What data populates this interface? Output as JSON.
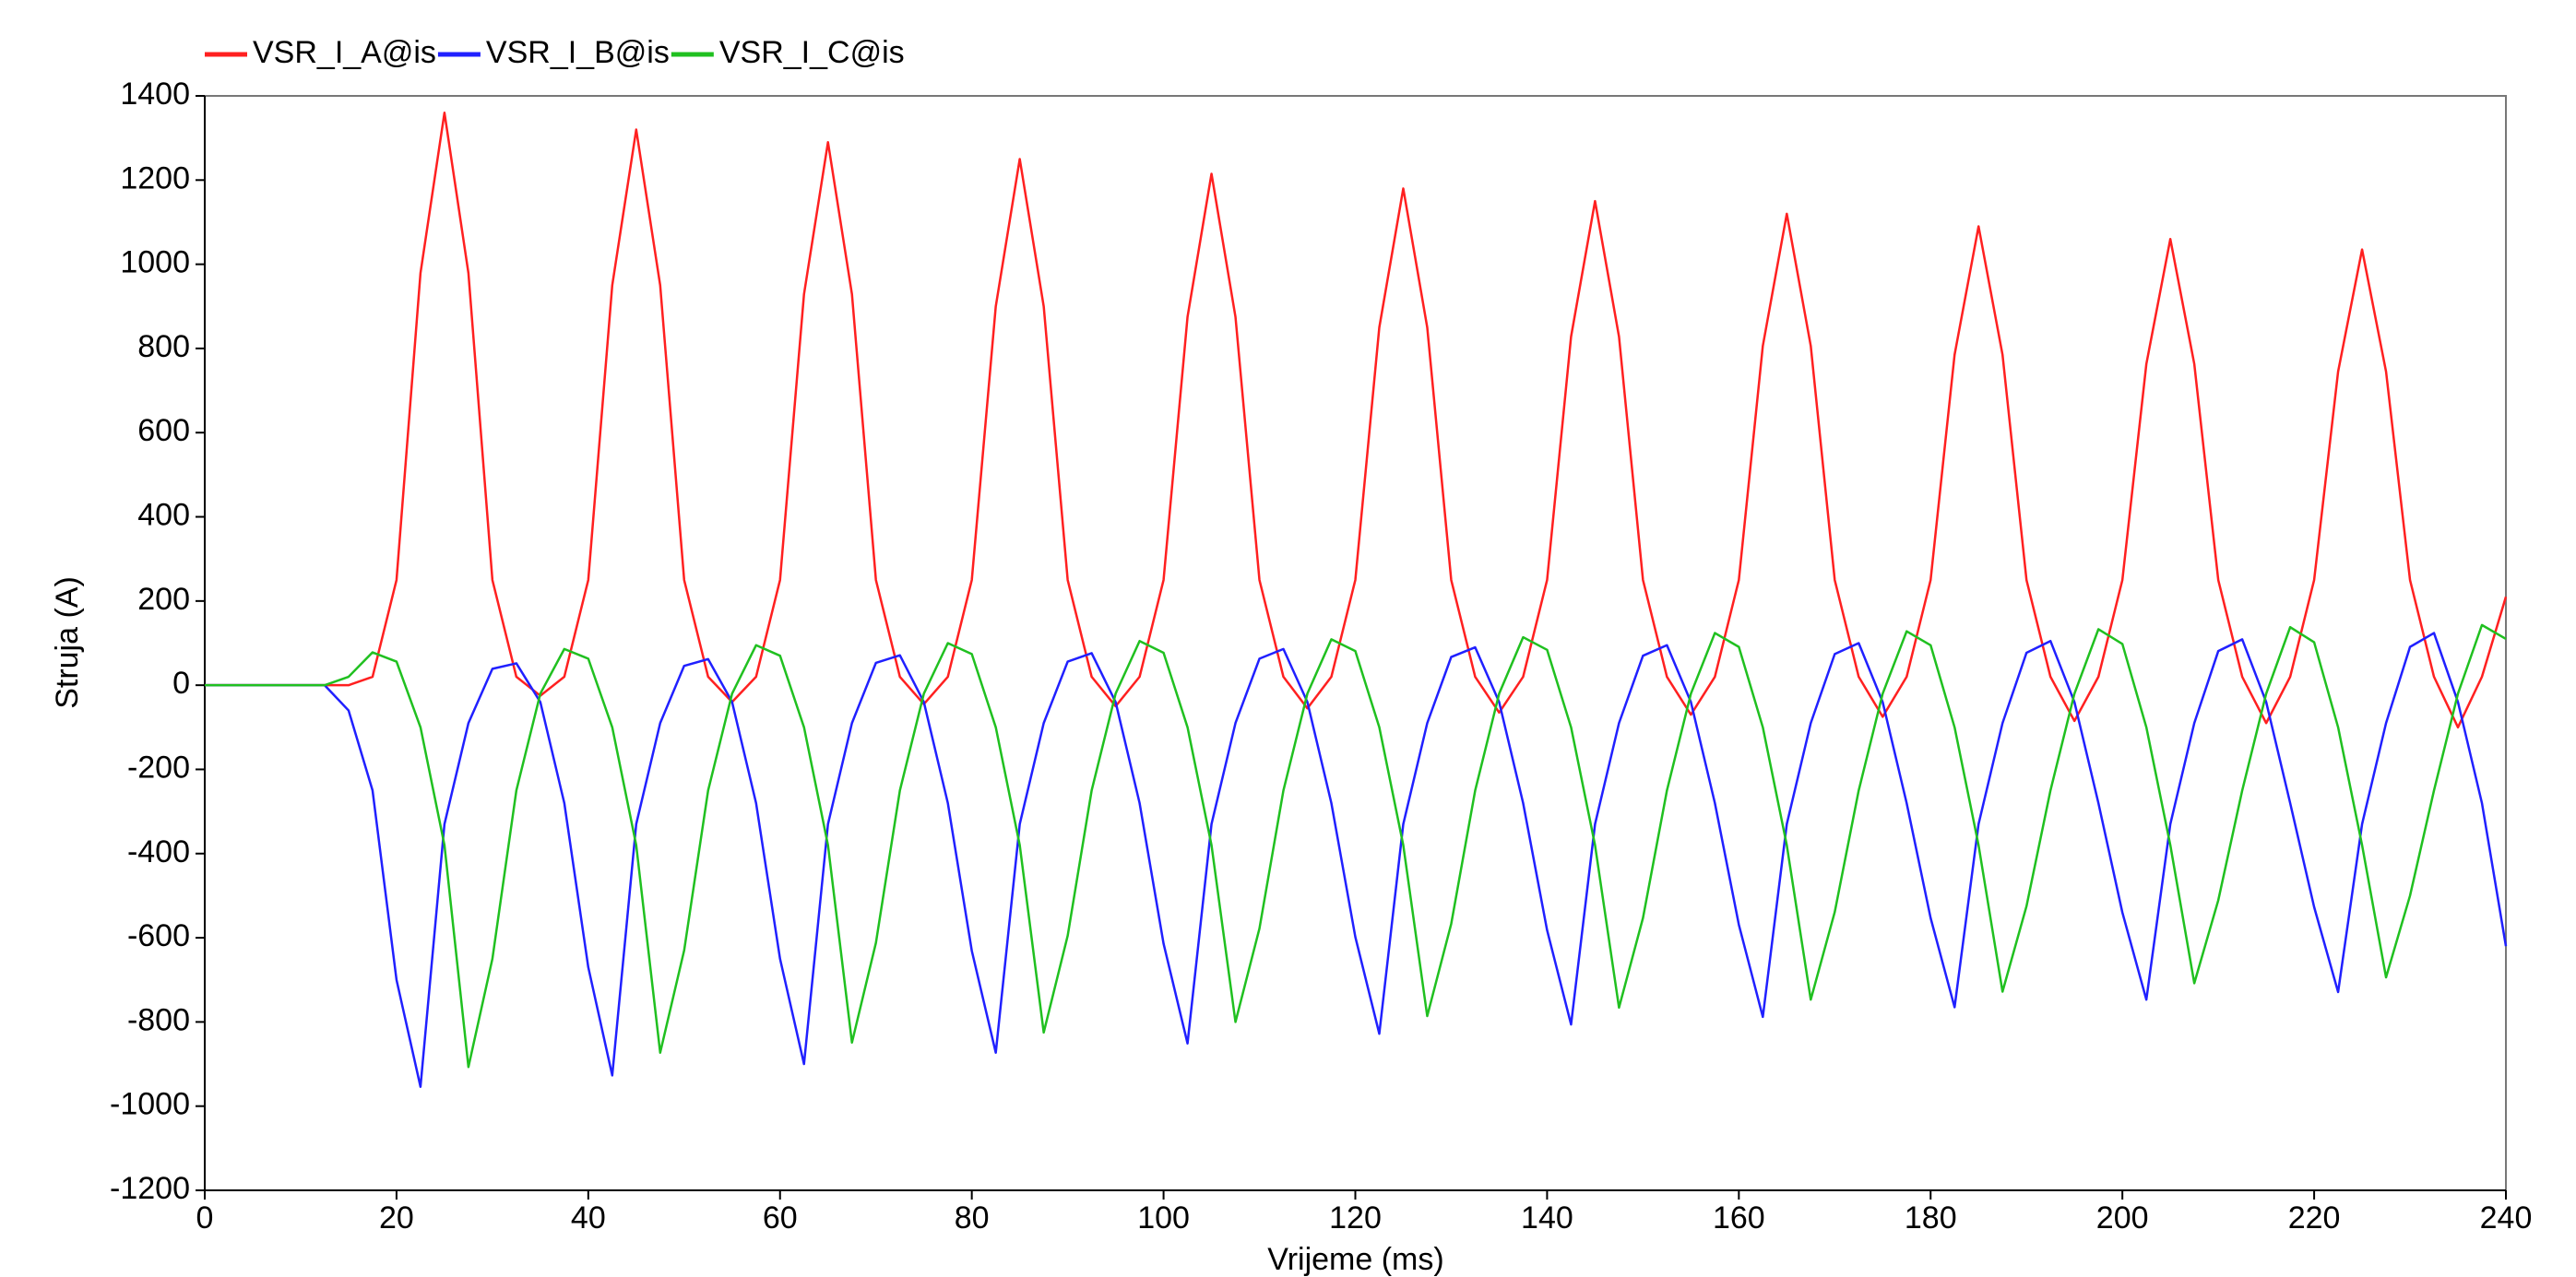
{
  "chart_data": {
    "type": "line",
    "xlabel": "Vrijeme (ms)",
    "ylabel": "Struja (A)",
    "xlim": [
      0,
      240
    ],
    "ylim": [
      -1200,
      1400
    ],
    "xticks": [
      0,
      20,
      40,
      60,
      80,
      100,
      120,
      140,
      160,
      180,
      200,
      220,
      240
    ],
    "yticks": [
      -1200,
      -1000,
      -800,
      -600,
      -400,
      -200,
      0,
      200,
      400,
      600,
      800,
      1000,
      1200,
      1400
    ],
    "grid": false,
    "legend": "top-left",
    "x": [
      0,
      2.5,
      5,
      7.5,
      10,
      12.5,
      15,
      17.5,
      20,
      22.5,
      25,
      27.5,
      30,
      32.5,
      35,
      37.5,
      40,
      42.5,
      45,
      47.5,
      50,
      52.5,
      55,
      57.5,
      60,
      62.5,
      65,
      67.5,
      70,
      72.5,
      75,
      77.5,
      80,
      82.5,
      85,
      87.5,
      90,
      92.5,
      95,
      97.5,
      100,
      102.5,
      105,
      107.5,
      110,
      112.5,
      115,
      117.5,
      120,
      122.5,
      125,
      127.5,
      130,
      132.5,
      135,
      137.5,
      140,
      142.5,
      145,
      147.5,
      150,
      152.5,
      155,
      157.5,
      160,
      162.5,
      165,
      167.5,
      170,
      172.5,
      175,
      177.5,
      180,
      182.5,
      185,
      187.5,
      190,
      192.5,
      195,
      197.5,
      200,
      202.5,
      205,
      207.5,
      210,
      212.5,
      215,
      217.5,
      220,
      222.5,
      225,
      227.5,
      230,
      232.5,
      235,
      237.5,
      240
    ],
    "series": [
      {
        "name": "VSR_I_A@is",
        "color": "#ff2020",
        "values": [
          0,
          0,
          0,
          0,
          0,
          0,
          0,
          20,
          250,
          979,
          1360,
          979,
          250,
          20,
          -25,
          20,
          250,
          950,
          1320,
          950,
          250,
          20,
          -40,
          20,
          250,
          929,
          1290,
          929,
          250,
          20,
          -45,
          20,
          250,
          900,
          1250,
          900,
          250,
          20,
          -50,
          20,
          250,
          875,
          1215,
          875,
          250,
          20,
          -55,
          20,
          250,
          850,
          1180,
          850,
          250,
          20,
          -65,
          20,
          250,
          828,
          1150,
          828,
          250,
          20,
          -70,
          20,
          250,
          806,
          1120,
          806,
          250,
          20,
          -75,
          20,
          250,
          785,
          1090,
          785,
          250,
          20,
          -85,
          20,
          250,
          763,
          1060,
          763,
          250,
          20,
          -90,
          20,
          250,
          745,
          1035,
          745,
          250,
          20,
          -100,
          20,
          210
        ]
      },
      {
        "name": "VSR_I_B@is",
        "color": "#2020ff",
        "values": [
          0,
          0,
          0,
          0,
          0,
          0,
          -60,
          -250,
          -700,
          -954,
          -330,
          -90,
          39,
          52,
          -40,
          -280,
          -670,
          -927,
          -330,
          -90,
          46,
          62,
          -40,
          -280,
          -650,
          -900,
          -330,
          -90,
          53,
          71,
          -40,
          -280,
          -631,
          -873,
          -330,
          -90,
          56,
          76,
          -40,
          -280,
          -614,
          -851,
          -330,
          -90,
          63,
          86,
          -40,
          -280,
          -598,
          -828,
          -330,
          -90,
          67,
          90,
          -40,
          -280,
          -582,
          -806,
          -330,
          -90,
          70,
          95,
          -40,
          -280,
          -569,
          -788,
          -330,
          -90,
          74,
          100,
          -40,
          -280,
          -553,
          -765,
          -330,
          -90,
          77,
          105,
          -40,
          -280,
          -540,
          -747,
          -330,
          -90,
          81,
          109,
          -40,
          -280,
          -527,
          -729,
          -330,
          -90,
          91,
          124,
          -40,
          -280,
          -620
        ]
      },
      {
        "name": "VSR_I_C@is",
        "color": "#20c020",
        "values": [
          0,
          0,
          0,
          0,
          0,
          0,
          20,
          78,
          56,
          -100,
          -380,
          -907,
          -650,
          -250,
          -20,
          86,
          63,
          -100,
          -380,
          -873,
          -630,
          -250,
          -20,
          95,
          70,
          -100,
          -380,
          -849,
          -612,
          -250,
          -20,
          100,
          74,
          -100,
          -380,
          -825,
          -595,
          -250,
          -20,
          105,
          77,
          -100,
          -380,
          -800,
          -578,
          -250,
          -20,
          109,
          81,
          -100,
          -380,
          -786,
          -567,
          -250,
          -20,
          114,
          84,
          -100,
          -380,
          -766,
          -553,
          -250,
          -20,
          124,
          91,
          -100,
          -380,
          -747,
          -539,
          -250,
          -20,
          128,
          95,
          -100,
          -380,
          -728,
          -525,
          -250,
          -20,
          133,
          98,
          -100,
          -380,
          -708,
          -511,
          -250,
          -20,
          138,
          102,
          -100,
          -380,
          -694,
          -500,
          -250,
          -20,
          143,
          110
        ]
      }
    ]
  }
}
